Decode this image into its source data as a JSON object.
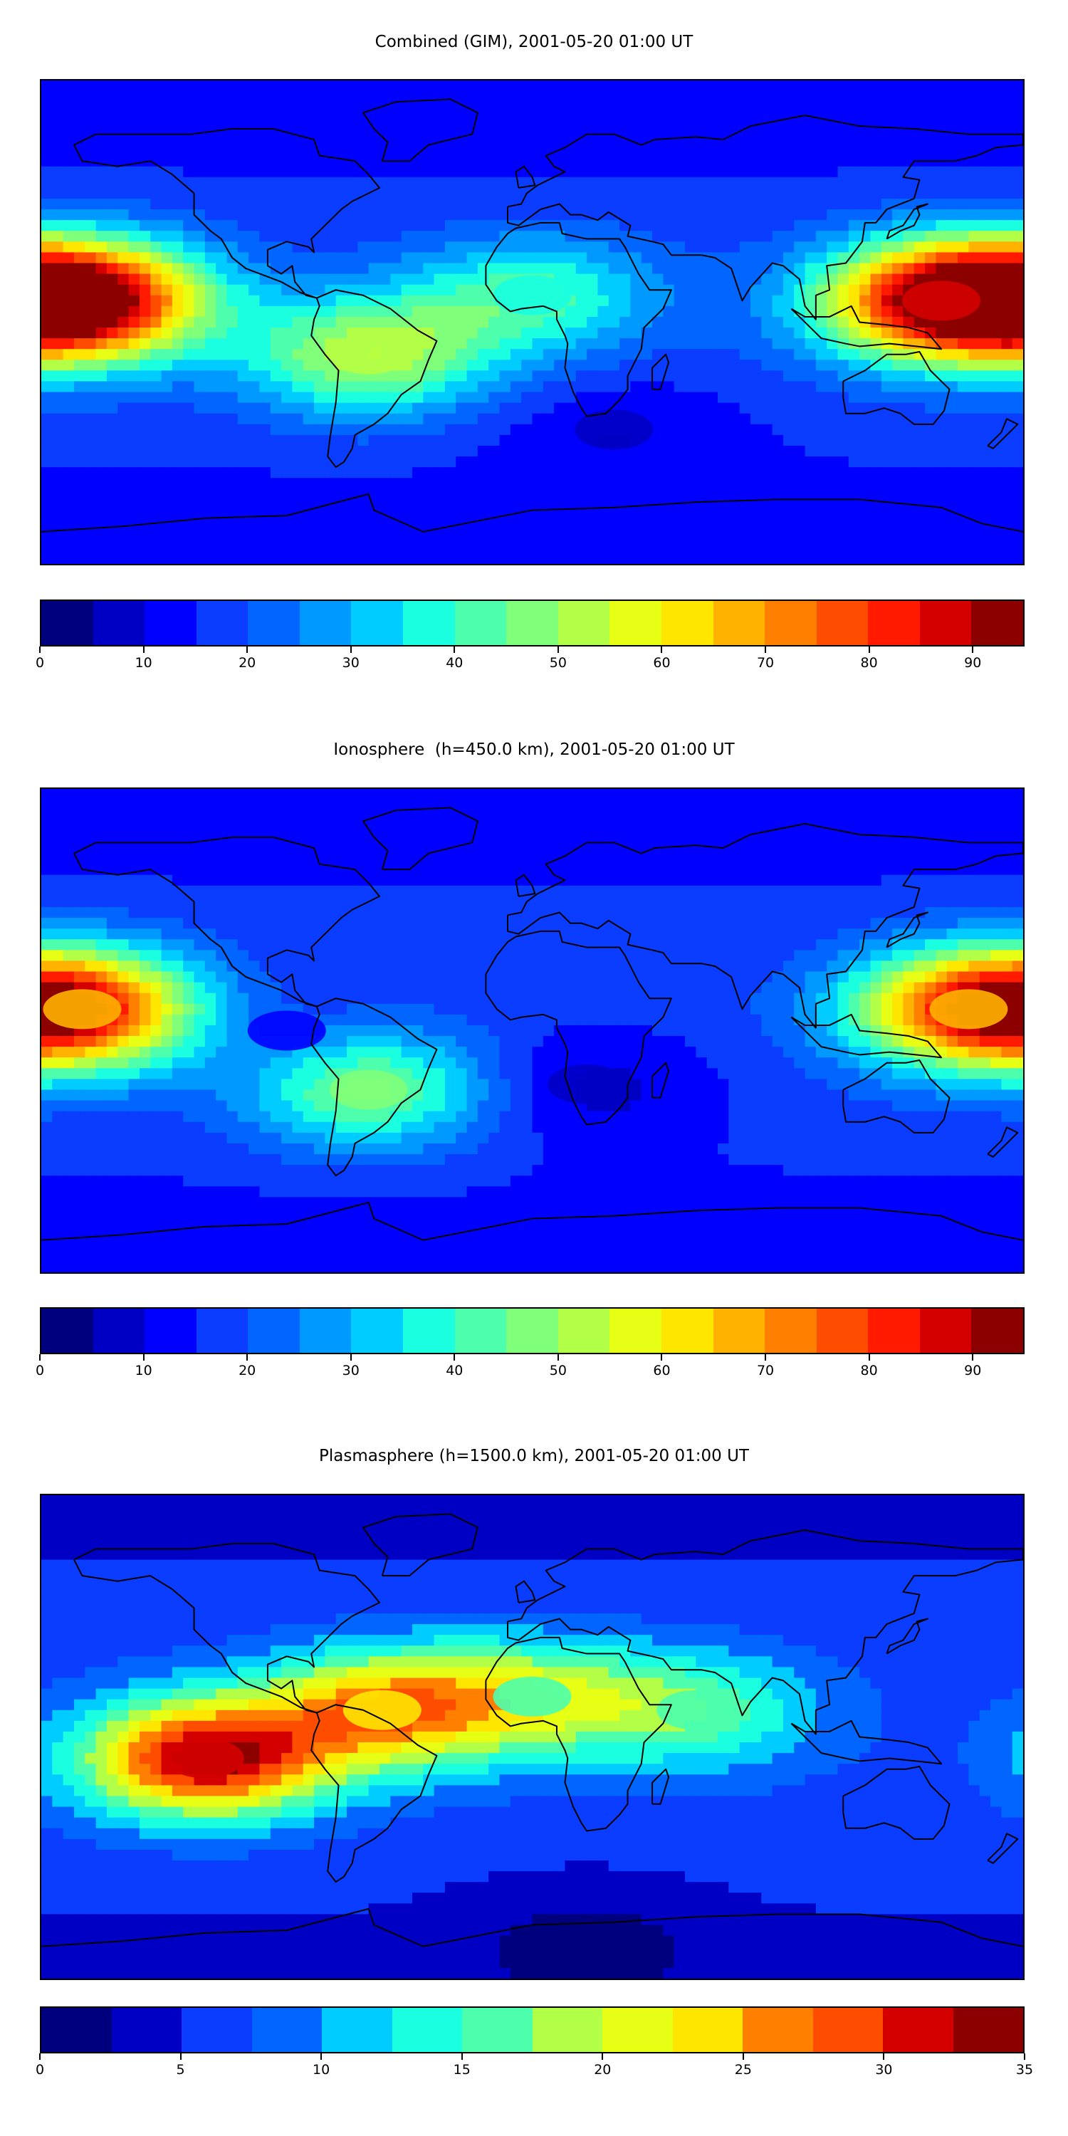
{
  "chart_data": [
    {
      "type": "heatmap",
      "title": "Combined (GIM), 2001-05-20 01:00 UT",
      "xlabel": "",
      "ylabel": "",
      "colorbar": {
        "min": 0,
        "max": 95,
        "step": 5,
        "ticks": [
          0,
          10,
          20,
          30,
          40,
          50,
          60,
          70,
          80,
          90
        ]
      },
      "grid": false,
      "features": [
        {
          "lon": -165,
          "lat": 8,
          "value": 90
        },
        {
          "lon": 150,
          "lat": 8,
          "value": 85
        },
        {
          "lon": -60,
          "lat": -12,
          "value": 50
        },
        {
          "lon": 0,
          "lat": 10,
          "value": 38
        },
        {
          "lon": 30,
          "lat": -40,
          "value": 8
        }
      ]
    },
    {
      "type": "heatmap",
      "title": "Ionosphere  (h=450.0 km), 2001-05-20 01:00 UT",
      "xlabel": "",
      "ylabel": "",
      "colorbar": {
        "min": 0,
        "max": 95,
        "step": 5,
        "ticks": [
          0,
          10,
          20,
          30,
          40,
          50,
          60,
          70,
          80,
          90
        ]
      },
      "grid": false,
      "features": [
        {
          "lon": -165,
          "lat": 8,
          "value": 68
        },
        {
          "lon": 160,
          "lat": 8,
          "value": 65
        },
        {
          "lon": -60,
          "lat": -22,
          "value": 45
        },
        {
          "lon": -90,
          "lat": 0,
          "value": 10
        },
        {
          "lon": 20,
          "lat": -20,
          "value": 5
        }
      ]
    },
    {
      "type": "heatmap",
      "title": "Plasmasphere (h=1500.0 km), 2001-05-20 01:00 UT",
      "xlabel": "",
      "ylabel": "",
      "colorbar": {
        "min": 0,
        "max": 35,
        "step": 2.5,
        "ticks": [
          0,
          5,
          10,
          15,
          20,
          25,
          30,
          35
        ]
      },
      "grid": false,
      "features": [
        {
          "lon": -120,
          "lat": -8,
          "value": 32
        },
        {
          "lon": -55,
          "lat": 10,
          "value": 24
        },
        {
          "lon": 0,
          "lat": 15,
          "value": 17
        },
        {
          "lon": 60,
          "lat": 10,
          "value": 15
        },
        {
          "lon": 20,
          "lat": -75,
          "value": 2
        }
      ]
    }
  ],
  "colormap": [
    "#00007f",
    "#0000c4",
    "#0000ff",
    "#0a3dff",
    "#0066ff",
    "#0099ff",
    "#00ccff",
    "#1affe0",
    "#4dffad",
    "#80ff7a",
    "#b3ff47",
    "#e6ff14",
    "#ffe600",
    "#ffb300",
    "#ff8000",
    "#ff4d00",
    "#ff1a00",
    "#d40000",
    "#8c0000"
  ]
}
